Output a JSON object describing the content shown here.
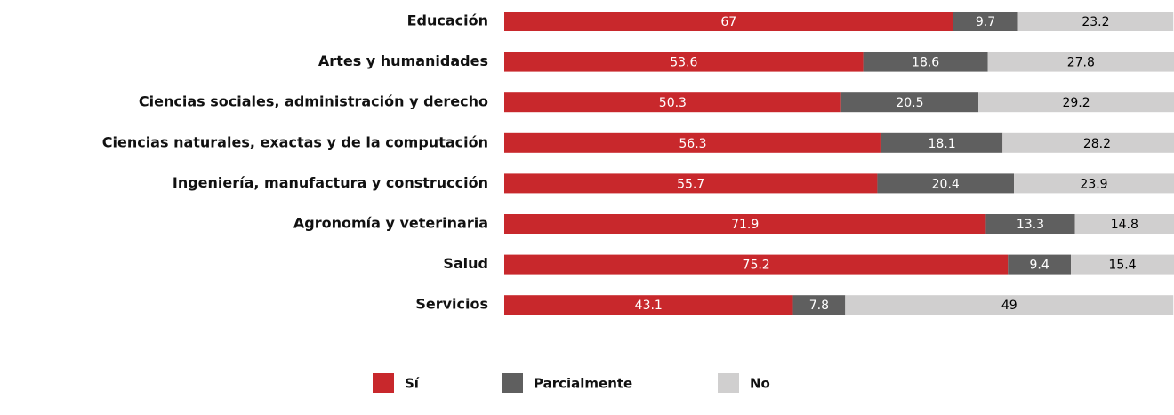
{
  "chart_data": {
    "type": "stacked-bar-horizontal",
    "categories": [
      "Educación",
      "Artes y humanidades",
      "Ciencias sociales, administración y derecho",
      "Ciencias naturales, exactas y de la computación",
      "Ingeniería, manufactura y construcción",
      "Agronomía y veterinaria",
      "Salud",
      "Servicios"
    ],
    "series": [
      {
        "name": "Sí",
        "color": "#c8282c",
        "label_color": "#ffffff",
        "values": [
          67,
          53.6,
          50.3,
          56.3,
          55.7,
          71.9,
          75.2,
          43.1
        ]
      },
      {
        "name": "Parcialmente",
        "color": "#5f5f5f",
        "label_color": "#ffffff",
        "values": [
          9.7,
          18.6,
          20.5,
          18.1,
          20.4,
          13.3,
          9.4,
          7.8
        ]
      },
      {
        "name": "No",
        "color": "#d0cfcf",
        "label_color": "#000000",
        "values": [
          23.2,
          27.8,
          29.2,
          28.2,
          23.9,
          14.8,
          15.4,
          49
        ]
      }
    ],
    "xlim": [
      0,
      100
    ]
  }
}
